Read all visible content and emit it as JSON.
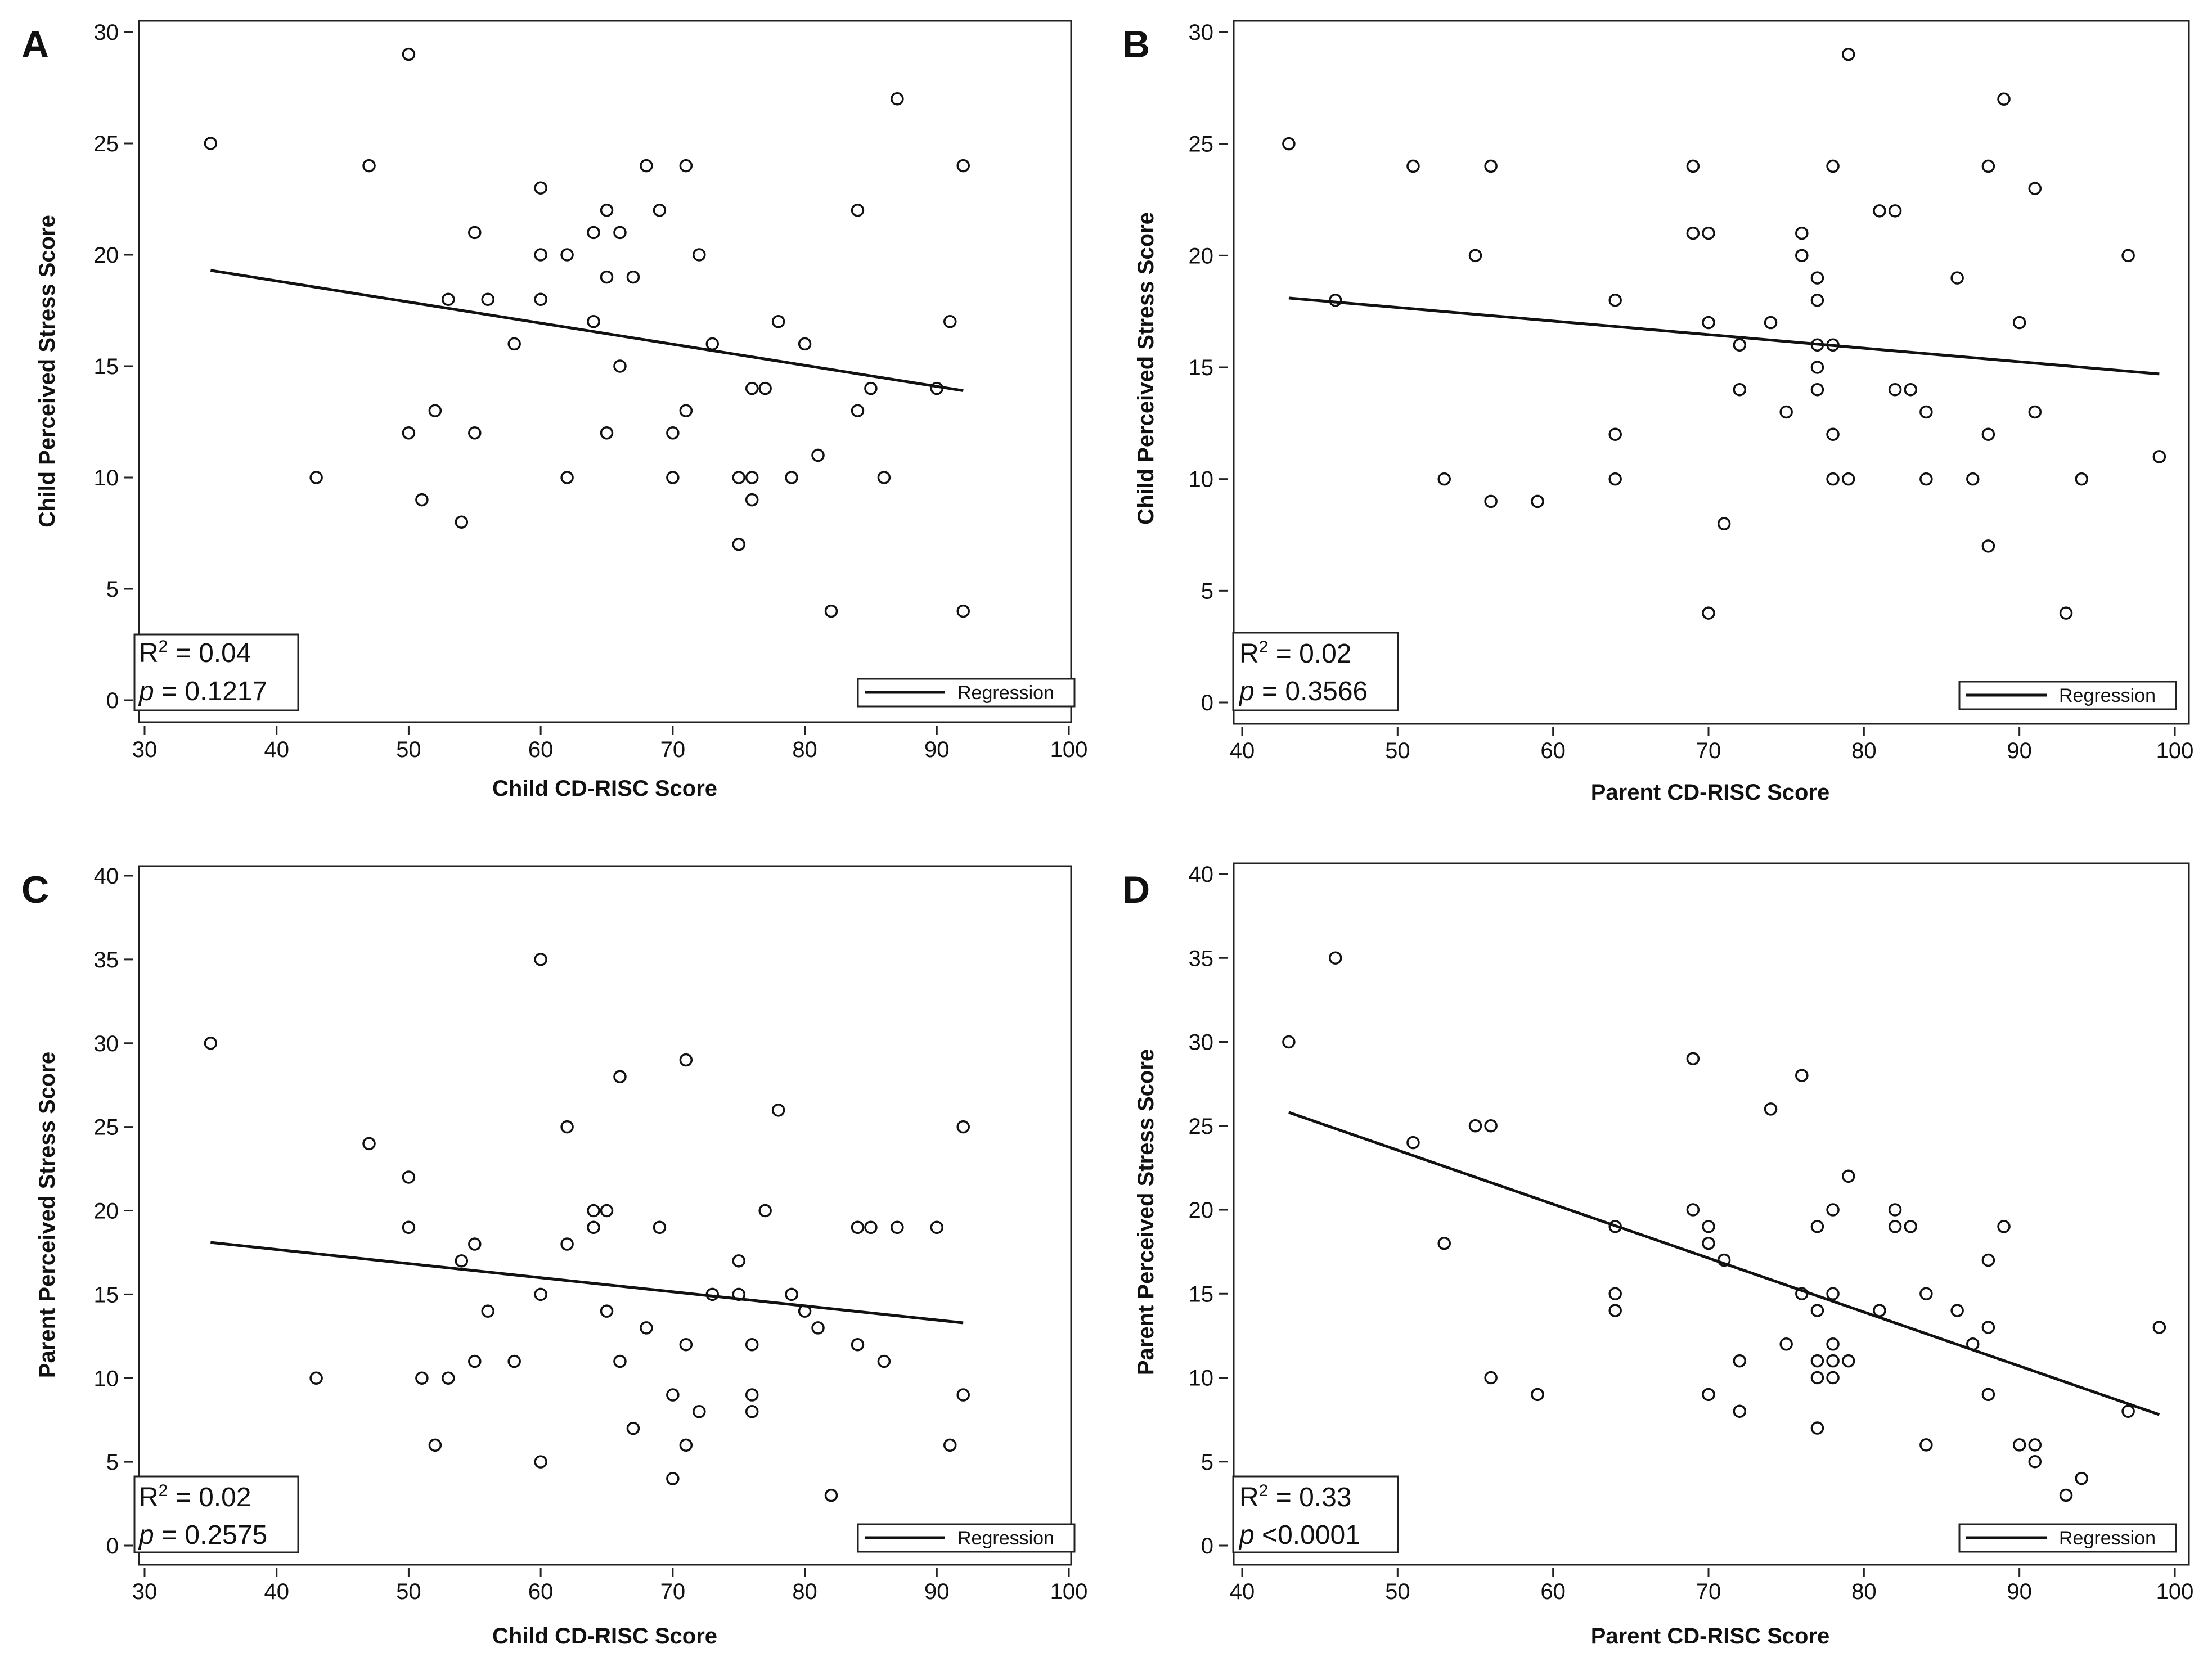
{
  "chart_data": [
    {
      "panel": "A",
      "type": "scatter",
      "xlabel": "Child CD-RISC Score",
      "ylabel": "Child Perceived Stress Score",
      "xlim": [
        30,
        100
      ],
      "ylim": [
        0,
        30
      ],
      "xticks": [
        "30",
        "40",
        "50",
        "60",
        "70",
        "80",
        "90",
        "100"
      ],
      "yticks": [
        "0",
        "5",
        "10",
        "15",
        "20",
        "25",
        "30"
      ],
      "points": [
        [
          35,
          25
        ],
        [
          43,
          10
        ],
        [
          47,
          24
        ],
        [
          50,
          29
        ],
        [
          50,
          12
        ],
        [
          51,
          9
        ],
        [
          52,
          13
        ],
        [
          53,
          18
        ],
        [
          54,
          8
        ],
        [
          55,
          21
        ],
        [
          55,
          12
        ],
        [
          56,
          18
        ],
        [
          58,
          16
        ],
        [
          60,
          23
        ],
        [
          60,
          20
        ],
        [
          60,
          18
        ],
        [
          62,
          20
        ],
        [
          62,
          10
        ],
        [
          64,
          21
        ],
        [
          64,
          17
        ],
        [
          65,
          22
        ],
        [
          65,
          19
        ],
        [
          65,
          12
        ],
        [
          66,
          21
        ],
        [
          66,
          15
        ],
        [
          67,
          19
        ],
        [
          68,
          24
        ],
        [
          69,
          22
        ],
        [
          70,
          12
        ],
        [
          70,
          10
        ],
        [
          71,
          24
        ],
        [
          71,
          13
        ],
        [
          72,
          20
        ],
        [
          73,
          16
        ],
        [
          75,
          10
        ],
        [
          75,
          7
        ],
        [
          76,
          14
        ],
        [
          76,
          10
        ],
        [
          76,
          9
        ],
        [
          77,
          14
        ],
        [
          78,
          17
        ],
        [
          79,
          10
        ],
        [
          80,
          16
        ],
        [
          81,
          11
        ],
        [
          82,
          4
        ],
        [
          84,
          22
        ],
        [
          84,
          13
        ],
        [
          85,
          14
        ],
        [
          86,
          10
        ],
        [
          87,
          27
        ],
        [
          90,
          14
        ],
        [
          91,
          17
        ],
        [
          92,
          24
        ],
        [
          92,
          4
        ]
      ],
      "regression": {
        "x": [
          35,
          92
        ],
        "y": [
          19.3,
          13.9
        ]
      },
      "stats": {
        "r2_prefix": "R",
        "r2_sup": "2",
        "r2_value": " = 0.04",
        "p_label": "p",
        "p_value": " = 0.1217"
      },
      "legend": {
        "label": "Regression"
      }
    },
    {
      "panel": "B",
      "type": "scatter",
      "xlabel": "Parent CD-RISC Score",
      "ylabel": "Child Perceived Stress Score",
      "xlim": [
        40,
        100
      ],
      "ylim": [
        0,
        30
      ],
      "xticks": [
        "40",
        "50",
        "60",
        "70",
        "80",
        "90",
        "100"
      ],
      "yticks": [
        "0",
        "5",
        "10",
        "15",
        "20",
        "25",
        "30"
      ],
      "points": [
        [
          43,
          25
        ],
        [
          46,
          18
        ],
        [
          51,
          24
        ],
        [
          53,
          10
        ],
        [
          55,
          20
        ],
        [
          56,
          24
        ],
        [
          56,
          9
        ],
        [
          59,
          9
        ],
        [
          64,
          18
        ],
        [
          64,
          12
        ],
        [
          64,
          10
        ],
        [
          69,
          24
        ],
        [
          69,
          21
        ],
        [
          70,
          21
        ],
        [
          70,
          17
        ],
        [
          70,
          4
        ],
        [
          71,
          8
        ],
        [
          72,
          16
        ],
        [
          72,
          14
        ],
        [
          74,
          17
        ],
        [
          75,
          13
        ],
        [
          76,
          21
        ],
        [
          76,
          20
        ],
        [
          77,
          19
        ],
        [
          77,
          18
        ],
        [
          77,
          16
        ],
        [
          77,
          15
        ],
        [
          77,
          14
        ],
        [
          78,
          24
        ],
        [
          78,
          16
        ],
        [
          78,
          12
        ],
        [
          78,
          10
        ],
        [
          79,
          29
        ],
        [
          79,
          10
        ],
        [
          81,
          22
        ],
        [
          82,
          22
        ],
        [
          82,
          14
        ],
        [
          83,
          14
        ],
        [
          84,
          13
        ],
        [
          84,
          10
        ],
        [
          86,
          19
        ],
        [
          87,
          10
        ],
        [
          88,
          24
        ],
        [
          88,
          12
        ],
        [
          88,
          7
        ],
        [
          89,
          27
        ],
        [
          90,
          17
        ],
        [
          91,
          23
        ],
        [
          91,
          13
        ],
        [
          93,
          4
        ],
        [
          94,
          10
        ],
        [
          97,
          20
        ],
        [
          99,
          11
        ]
      ],
      "regression": {
        "x": [
          43,
          99
        ],
        "y": [
          18.1,
          14.7
        ]
      },
      "stats": {
        "r2_prefix": "R",
        "r2_sup": "2",
        "r2_value": " = 0.02",
        "p_label": "p",
        "p_value": " = 0.3566"
      },
      "legend": {
        "label": "Regression"
      }
    },
    {
      "panel": "C",
      "type": "scatter",
      "xlabel": "Child CD-RISC Score",
      "ylabel": "Parent Perceived Stress Score",
      "xlim": [
        30,
        100
      ],
      "ylim": [
        0,
        40
      ],
      "xticks": [
        "30",
        "40",
        "50",
        "60",
        "70",
        "80",
        "90",
        "100"
      ],
      "yticks": [
        "0",
        "5",
        "10",
        "15",
        "20",
        "25",
        "30",
        "35",
        "40"
      ],
      "points": [
        [
          35,
          30
        ],
        [
          43,
          10
        ],
        [
          47,
          24
        ],
        [
          50,
          22
        ],
        [
          50,
          19
        ],
        [
          51,
          10
        ],
        [
          52,
          6
        ],
        [
          53,
          10
        ],
        [
          54,
          17
        ],
        [
          55,
          18
        ],
        [
          55,
          11
        ],
        [
          56,
          14
        ],
        [
          58,
          11
        ],
        [
          60,
          35
        ],
        [
          60,
          15
        ],
        [
          60,
          5
        ],
        [
          62,
          25
        ],
        [
          62,
          18
        ],
        [
          64,
          20
        ],
        [
          64,
          19
        ],
        [
          65,
          20
        ],
        [
          65,
          14
        ],
        [
          66,
          28
        ],
        [
          66,
          11
        ],
        [
          67,
          7
        ],
        [
          68,
          13
        ],
        [
          69,
          19
        ],
        [
          70,
          9
        ],
        [
          70,
          4
        ],
        [
          71,
          29
        ],
        [
          71,
          12
        ],
        [
          71,
          6
        ],
        [
          72,
          8
        ],
        [
          73,
          15
        ],
        [
          75,
          17
        ],
        [
          75,
          15
        ],
        [
          76,
          12
        ],
        [
          76,
          9
        ],
        [
          76,
          8
        ],
        [
          77,
          20
        ],
        [
          78,
          26
        ],
        [
          79,
          15
        ],
        [
          80,
          14
        ],
        [
          81,
          13
        ],
        [
          82,
          3
        ],
        [
          84,
          19
        ],
        [
          84,
          12
        ],
        [
          85,
          19
        ],
        [
          86,
          11
        ],
        [
          87,
          19
        ],
        [
          90,
          19
        ],
        [
          91,
          6
        ],
        [
          92,
          25
        ],
        [
          92,
          9
        ]
      ],
      "regression": {
        "x": [
          35,
          92
        ],
        "y": [
          18.1,
          13.3
        ]
      },
      "stats": {
        "r2_prefix": "R",
        "r2_sup": "2",
        "r2_value": " = 0.02",
        "p_label": "p",
        "p_value": " = 0.2575"
      },
      "legend": {
        "label": "Regression"
      }
    },
    {
      "panel": "D",
      "type": "scatter",
      "xlabel": "Parent CD-RISC Score",
      "ylabel": "Parent Perceived Stress Score",
      "xlim": [
        40,
        100
      ],
      "ylim": [
        0,
        40
      ],
      "xticks": [
        "40",
        "50",
        "60",
        "70",
        "80",
        "90",
        "100"
      ],
      "yticks": [
        "0",
        "5",
        "10",
        "15",
        "20",
        "25",
        "30",
        "35",
        "40"
      ],
      "points": [
        [
          43,
          30
        ],
        [
          46,
          35
        ],
        [
          51,
          24
        ],
        [
          53,
          18
        ],
        [
          55,
          25
        ],
        [
          56,
          25
        ],
        [
          56,
          10
        ],
        [
          59,
          9
        ],
        [
          64,
          19
        ],
        [
          64,
          15
        ],
        [
          64,
          14
        ],
        [
          69,
          29
        ],
        [
          69,
          20
        ],
        [
          70,
          19
        ],
        [
          70,
          18
        ],
        [
          70,
          9
        ],
        [
          71,
          17
        ],
        [
          72,
          11
        ],
        [
          72,
          8
        ],
        [
          74,
          26
        ],
        [
          75,
          12
        ],
        [
          76,
          28
        ],
        [
          76,
          15
        ],
        [
          77,
          19
        ],
        [
          77,
          14
        ],
        [
          77,
          11
        ],
        [
          77,
          10
        ],
        [
          77,
          7
        ],
        [
          78,
          20
        ],
        [
          78,
          15
        ],
        [
          78,
          12
        ],
        [
          78,
          11
        ],
        [
          78,
          10
        ],
        [
          79,
          22
        ],
        [
          79,
          11
        ],
        [
          81,
          14
        ],
        [
          82,
          20
        ],
        [
          82,
          19
        ],
        [
          83,
          19
        ],
        [
          84,
          15
        ],
        [
          84,
          6
        ],
        [
          86,
          14
        ],
        [
          87,
          12
        ],
        [
          88,
          17
        ],
        [
          88,
          13
        ],
        [
          88,
          9
        ],
        [
          89,
          19
        ],
        [
          90,
          6
        ],
        [
          91,
          6
        ],
        [
          91,
          5
        ],
        [
          93,
          3
        ],
        [
          94,
          4
        ],
        [
          97,
          8
        ],
        [
          99,
          13
        ]
      ],
      "regression": {
        "x": [
          43,
          99
        ],
        "y": [
          25.8,
          7.8
        ]
      },
      "stats": {
        "r2_prefix": "R",
        "r2_sup": "2",
        "r2_value": " = 0.33",
        "p_label": "p",
        "p_value": " <0.0001"
      },
      "legend": {
        "label": "Regression"
      }
    }
  ]
}
